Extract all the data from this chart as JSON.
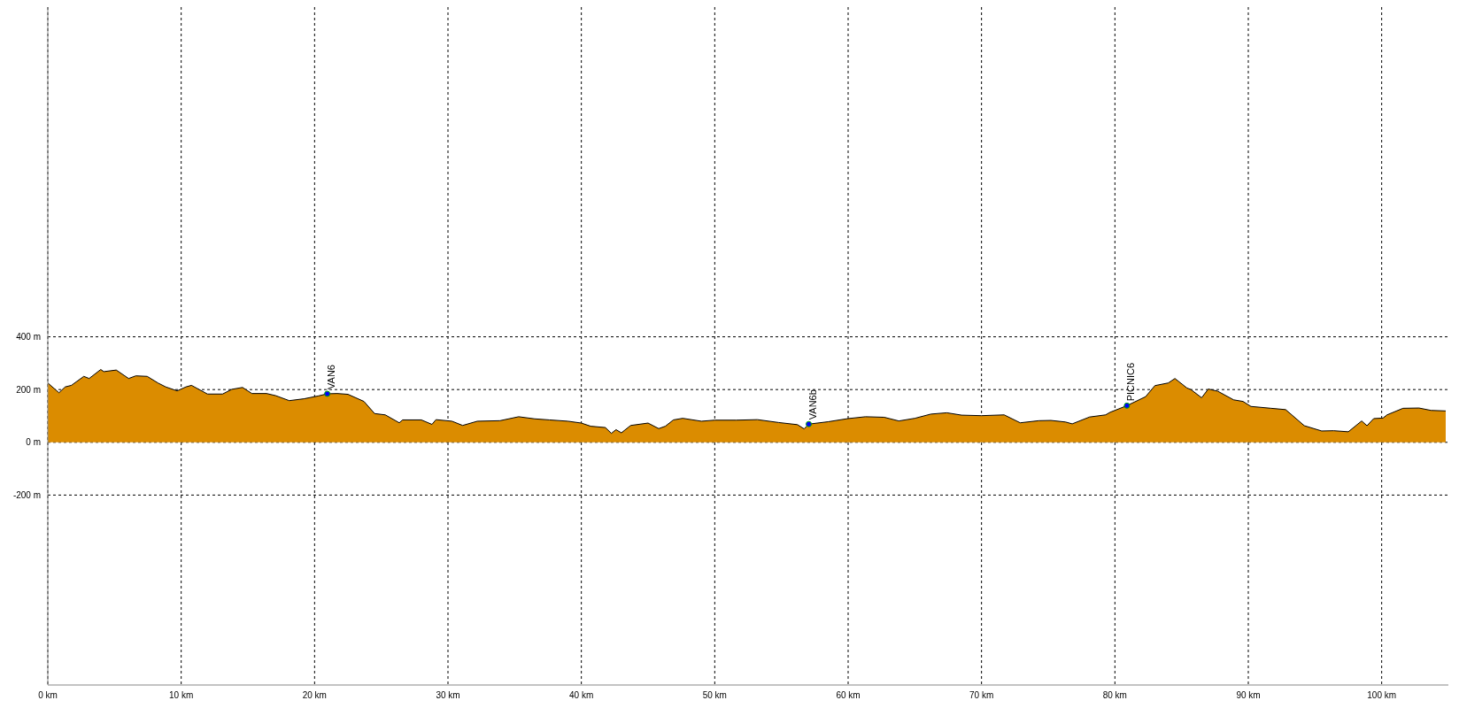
{
  "chart_data": {
    "type": "area",
    "xlim": [
      0,
      105
    ],
    "xticks": [
      {
        "value": 0,
        "label": "0 km"
      },
      {
        "value": 10,
        "label": "10 km"
      },
      {
        "value": 20,
        "label": "20 km"
      },
      {
        "value": 30,
        "label": "30 km"
      },
      {
        "value": 40,
        "label": "40 km"
      },
      {
        "value": 50,
        "label": "50 km"
      },
      {
        "value": 60,
        "label": "60 km"
      },
      {
        "value": 70,
        "label": "70 km"
      },
      {
        "value": 80,
        "label": "80 km"
      },
      {
        "value": 90,
        "label": "90 km"
      },
      {
        "value": 100,
        "label": "100 km"
      }
    ],
    "ylim": [
      -920,
      1650
    ],
    "yticks": [
      {
        "value": -200,
        "label": "-200 m"
      },
      {
        "value": 0,
        "label": "0 m"
      },
      {
        "value": 200,
        "label": "200 m"
      },
      {
        "value": 400,
        "label": "400 m"
      }
    ],
    "grid": true,
    "legend": false,
    "series": [
      {
        "color": "#db8c00",
        "x": [
          0,
          0.84,
          1.3,
          1.77,
          2.7,
          3.1,
          3.97,
          4.2,
          5.13,
          6.06,
          6.6,
          7.45,
          8.26,
          8.84,
          9.7,
          10.35,
          10.77,
          11.97,
          13.1,
          13.8,
          14.6,
          15.3,
          16.4,
          17.08,
          18.1,
          19.2,
          20.3,
          20.95,
          21.7,
          22.5,
          23.7,
          24.5,
          25.3,
          26.35,
          26.6,
          28,
          28.8,
          29.1,
          30.3,
          31.1,
          32.2,
          33.9,
          35.3,
          36.5,
          37.6,
          39,
          40,
          40.7,
          41.8,
          42.25,
          42.6,
          43,
          43.7,
          45,
          45.8,
          46.3,
          46.9,
          47.6,
          49,
          50,
          51.6,
          53.2,
          54.8,
          56.2,
          56.7,
          57.05,
          58.5,
          60,
          61.3,
          62.7,
          63.8,
          65,
          66.2,
          67.4,
          68.5,
          70,
          71.7,
          72.9,
          74.3,
          75.2,
          76.3,
          76.8,
          78.1,
          79.3,
          79.65,
          80.9,
          82.3,
          83,
          84,
          84.5,
          85.4,
          85.7,
          86.5,
          87,
          87.7,
          88.9,
          89.6,
          90.2,
          91.7,
          92.8,
          94.2,
          95.5,
          96.4,
          97.5,
          98.5,
          98.9,
          99.4,
          100.1,
          100.4,
          101.6,
          102.8,
          103.7,
          104.8
        ],
        "values": [
          225,
          188,
          210,
          216,
          250,
          242,
          276,
          268,
          274,
          242,
          252,
          250,
          225,
          210,
          195,
          210,
          216,
          183,
          183,
          201,
          208,
          185,
          185,
          177,
          158,
          165,
          176,
          184,
          185,
          182,
          155,
          109,
          104,
          74,
          85,
          85,
          68,
          86,
          80,
          64,
          80,
          82,
          97,
          89,
          85,
          80,
          73,
          61,
          56,
          34,
          48,
          36,
          64,
          73,
          52,
          61,
          85,
          91,
          80,
          84,
          84,
          86,
          75,
          67,
          51,
          69,
          78,
          90,
          97,
          95,
          81,
          91,
          107,
          112,
          103,
          101,
          104,
          74,
          82,
          83,
          77,
          70,
          96,
          104,
          114,
          139,
          173,
          215,
          225,
          242,
          206,
          200,
          169,
          202,
          194,
          161,
          155,
          136,
          129,
          124,
          63,
          43,
          44,
          40,
          81,
          63,
          90,
          92,
          104,
          129,
          130,
          121,
          119
        ]
      },
      {
        "type": "scatter",
        "color": "#0000ff",
        "marker": "circle",
        "x": [
          20.95,
          57.05,
          80.9
        ],
        "values": [
          184,
          69,
          139
        ],
        "value_labels": [
          "VAN6",
          "VAN6b",
          "PICNIC6"
        ]
      }
    ]
  }
}
